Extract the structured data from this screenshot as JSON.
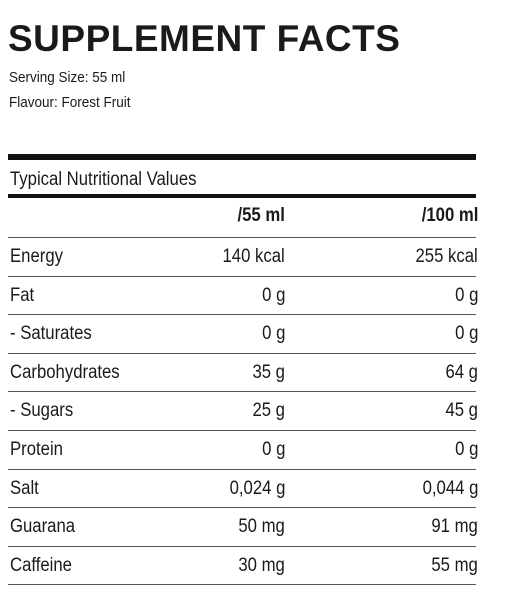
{
  "header": {
    "title": "SUPPLEMENT FACTS",
    "serving_size": "Serving Size: 55 ml",
    "flavour": "Flavour: Forest Fruit"
  },
  "table": {
    "caption": "Typical Nutritional Values",
    "columns": [
      "/55 ml",
      "/100 ml"
    ],
    "rows": [
      [
        "Energy",
        "140 kcal",
        "255 kcal"
      ],
      [
        "Fat",
        "0 g",
        "0 g"
      ],
      [
        "- Saturates",
        "0 g",
        "0 g"
      ],
      [
        "Carbohydrates",
        "35 g",
        "64 g"
      ],
      [
        "- Sugars",
        "25 g",
        "45 g"
      ],
      [
        "Protein",
        "0 g",
        "0 g"
      ],
      [
        "Salt",
        "0,024 g",
        "0,044 g"
      ],
      [
        "Guarana",
        "50 mg",
        "91 mg"
      ],
      [
        "Caffeine",
        "30 mg",
        "55 mg"
      ]
    ]
  }
}
